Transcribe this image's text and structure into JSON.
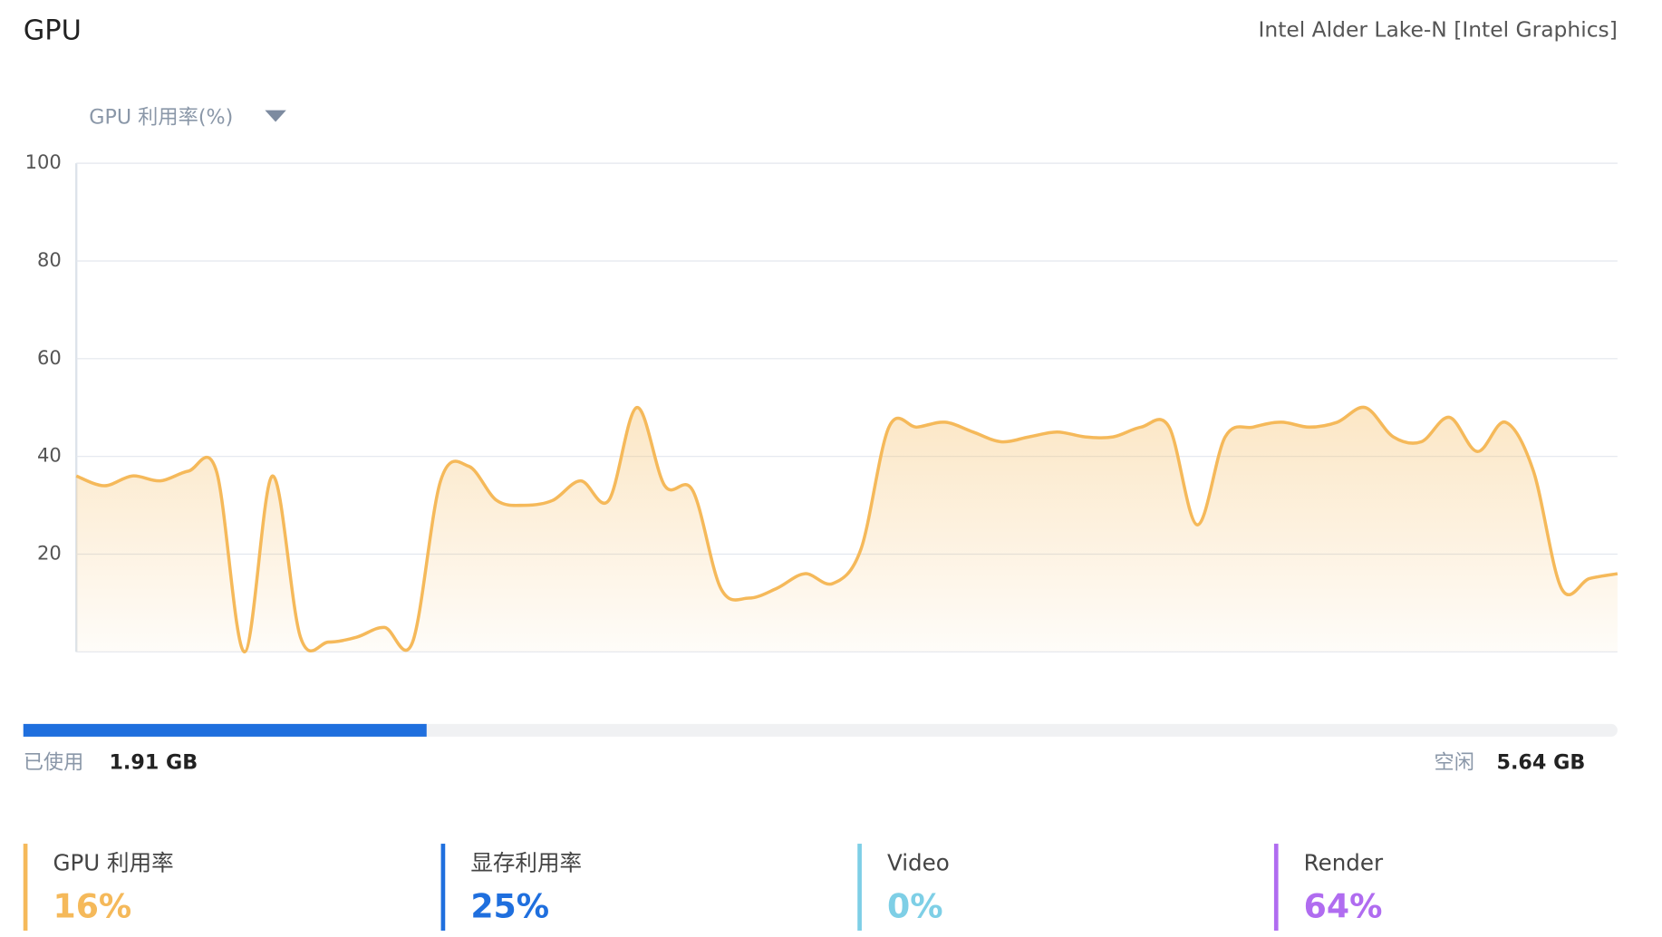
{
  "header": {
    "title": "GPU",
    "device": "Intel Alder Lake-N [Intel Graphics]"
  },
  "chart_data": {
    "type": "area",
    "title": "GPU 利用率(%)",
    "categories": [
      null,
      null,
      null,
      null,
      null,
      null,
      null,
      null,
      null,
      null,
      null,
      null,
      null,
      null,
      null,
      null,
      null,
      null,
      null,
      null,
      null,
      null,
      null,
      null,
      null,
      null,
      null,
      null,
      null,
      null,
      null,
      null,
      null,
      null,
      null,
      null,
      null,
      null,
      null,
      null,
      null,
      null,
      null,
      null,
      null,
      null,
      null,
      null,
      null,
      null,
      null,
      null,
      null,
      null,
      null,
      null
    ],
    "series": [
      {
        "name": "GPU 利用率",
        "color": "#f5b95a",
        "values": [
          36,
          34,
          36,
          35,
          37,
          37,
          0,
          36,
          3,
          2,
          3,
          5,
          2,
          35,
          38,
          31,
          30,
          31,
          35,
          31,
          50,
          34,
          33,
          13,
          11,
          13,
          16,
          14,
          21,
          46,
          46,
          47,
          45,
          43,
          44,
          45,
          44,
          44,
          46,
          46,
          26,
          44,
          46,
          47,
          46,
          47,
          50,
          44,
          43,
          48,
          41,
          47,
          37,
          13,
          15,
          16
        ]
      }
    ],
    "ylim": [
      0,
      100
    ],
    "yticks": [
      20,
      40,
      60,
      80,
      100
    ],
    "grid": true
  },
  "memory": {
    "used_label": "已使用",
    "used": {
      "value": 1.91,
      "label": "1.91 GB"
    },
    "free_label": "空闲",
    "free": {
      "value": 5.64,
      "label": "5.64 GB"
    },
    "color": "#1f6fde"
  },
  "stats": [
    {
      "label": "GPU 利用率",
      "value_label": "16%",
      "color": "#f5b95a"
    },
    {
      "label": "显存利用率",
      "value_label": "25%",
      "color": "#1f6fde"
    },
    {
      "label": "Video",
      "value_label": "0%",
      "color": "#7ecfe6"
    },
    {
      "label": "Render",
      "value_label": "64%",
      "color": "#b06cf0"
    }
  ]
}
